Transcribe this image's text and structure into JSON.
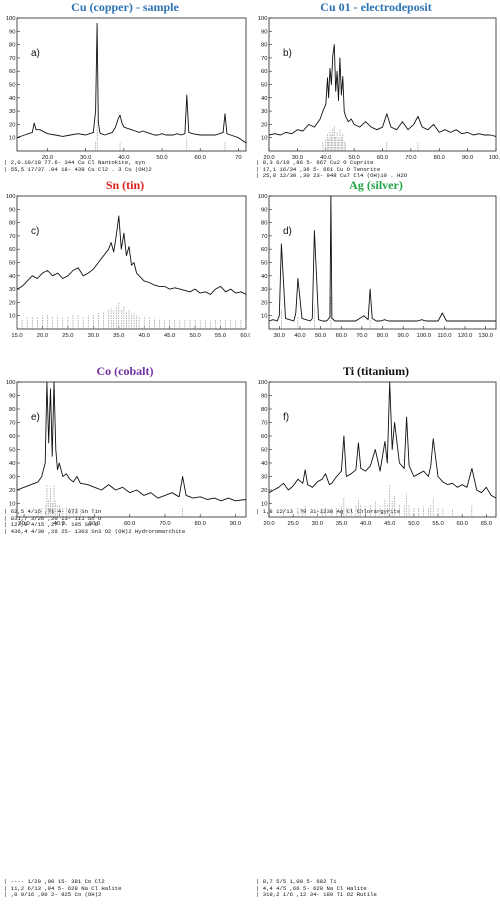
{
  "panels": [
    {
      "id": "cu-sample",
      "title": "Cu (copper) - sample",
      "title_color": "#2e74b5",
      "letter": "a)",
      "legend": [
        "| 2,0.10/10     77.6- 344 Cu Cl Nantokite, syn",
        "| 55,5 17/37 .04 18- 439 Cu Cl2 . 3 Cu (OH)2"
      ]
    },
    {
      "id": "cu-electrodeposit",
      "title": "Cu 01 - electrodeposit",
      "title_color": "#2e74b5",
      "letter": "b)",
      "legend": [
        "| 8,3   6/10   ,86   5- 667 Cu2 O Cuprite",
        "| 17,1 16/34  ,36  5- 661 Cu O Tenorite",
        "| 25,8 12/30  ,30  23- 948 Cu7 Cl4 (OH)10 . H2O"
      ]
    },
    {
      "id": "sn",
      "title": "Sn (tin)",
      "title_color": "#e0201b",
      "letter": "c)",
      "legend": [
        "| 62,5    4/16   ,71   4- 673 Sn Tin",
        "| 831,7  3/26   ,20  13- 111 Sn O",
        "| 127,9  4/15   ,27   7- 195 Sn O",
        "| 436,4  4/30   ,29  25- 1303 Sn3 O2 (OH)2 Hydroromarchite"
      ]
    },
    {
      "id": "ag",
      "title": "Ag (silver)",
      "title_color": "#1fa347",
      "letter": "d)",
      "legend": [
        "| 1,8 12/13 .79 31-1238 Ag Cl Chlorargyrite"
      ]
    },
    {
      "id": "co",
      "title": "Co (cobalt)",
      "title_color": "#7030a0",
      "letter": "e)",
      "legend": [
        "| ---- 1/20   ,00  15- 381 Co Cl2",
        "| 11,2 6/13   ,94  5- 628 Na Cl Halite",
        "| ,0 0/16    ,00  2- 925 Co (OH)2"
      ]
    },
    {
      "id": "ti",
      "title": "Ti (titanium)",
      "title_color": "#111111",
      "letter": "f)",
      "legend": [
        "| 8,7   5/5   1,00   5- 682 Ti",
        "| 4,4   4/5   ,66   5- 628 Na Cl Halite",
        "| 319,2  1/6   ,12  34- 180 Ti O2 Rutile"
      ]
    }
  ],
  "chart_data": [
    {
      "type": "line",
      "title": "Cu (copper) - sample",
      "xlabel": "",
      "ylabel": "",
      "xlim": [
        12,
        72
      ],
      "ylim": [
        0,
        100
      ],
      "xticks": [
        20.0,
        30.0,
        40.0,
        50.0,
        60.0,
        70.0
      ],
      "xtick_labels": [
        "20.0",
        "30.0",
        "40.0",
        "50.0",
        "60.0",
        "70"
      ],
      "yticks": [
        10,
        20,
        30,
        40,
        50,
        60,
        70,
        80,
        90,
        100
      ],
      "x": [
        12,
        14,
        16,
        16.5,
        17,
        18,
        20,
        22,
        24,
        26,
        28,
        30,
        31,
        32,
        32.6,
        33,
        33.3,
        33.7,
        34,
        35,
        36,
        37,
        37.8,
        38.5,
        39,
        39.5,
        40,
        41,
        42,
        43,
        44,
        45,
        46,
        47,
        48,
        49,
        50,
        51,
        52,
        53,
        54,
        55,
        56,
        56.5,
        57,
        58,
        60,
        62,
        64,
        66,
        66.5,
        67,
        68,
        70,
        72
      ],
      "values": [
        10,
        12,
        14,
        21,
        16,
        16,
        13,
        12,
        11,
        12,
        13,
        12,
        13,
        14,
        30,
        96,
        22,
        14,
        13,
        12,
        13,
        14,
        18,
        24,
        27,
        21,
        18,
        17,
        16,
        15,
        14,
        15,
        14,
        13,
        12,
        12,
        13,
        12,
        12,
        12,
        13,
        12,
        13,
        42,
        14,
        13,
        12,
        12,
        12,
        14,
        28,
        13,
        12,
        10,
        6
      ],
      "grid": false
    },
    {
      "type": "line",
      "title": "Cu 01 - electrodeposit",
      "xlabel": "",
      "ylabel": "",
      "xlim": [
        20,
        100
      ],
      "ylim": [
        0,
        100
      ],
      "xticks": [
        20.0,
        30.0,
        40.0,
        50.0,
        60.0,
        70.0,
        80.0,
        90.0,
        100.0
      ],
      "xtick_labels": [
        "20.0",
        "30.0",
        "40.0",
        "50.0",
        "60.0",
        "70.0",
        "80.0",
        "90.0",
        "100.0"
      ],
      "yticks": [
        10,
        20,
        30,
        40,
        50,
        60,
        70,
        80,
        90,
        100
      ],
      "x": [
        20,
        22,
        24,
        26,
        28,
        30,
        32,
        34,
        36,
        38,
        39,
        40,
        40.6,
        41,
        41.5,
        42,
        42.5,
        43,
        43.5,
        44,
        44.5,
        45,
        45.5,
        46,
        46.5,
        47,
        48,
        49,
        50,
        52,
        54,
        56,
        58,
        60,
        61.5,
        63,
        65,
        67,
        69,
        71,
        72.5,
        74,
        76,
        78,
        80,
        82,
        84,
        86,
        88,
        90,
        92,
        94,
        96,
        98,
        100
      ],
      "values": [
        12,
        13,
        12,
        14,
        13,
        16,
        15,
        20,
        18,
        24,
        30,
        35,
        55,
        40,
        62,
        50,
        72,
        80,
        45,
        60,
        38,
        70,
        42,
        56,
        30,
        26,
        22,
        24,
        20,
        18,
        22,
        18,
        16,
        18,
        28,
        18,
        16,
        22,
        16,
        20,
        26,
        18,
        16,
        20,
        14,
        16,
        14,
        16,
        13,
        14,
        12,
        13,
        12,
        12,
        11
      ],
      "grid": false
    },
    {
      "type": "line",
      "title": "Sn (tin)",
      "xlabel": "",
      "ylabel": "",
      "xlim": [
        15,
        60
      ],
      "ylim": [
        0,
        100
      ],
      "xticks": [
        15.0,
        20.0,
        25.0,
        30.0,
        35.0,
        40.0,
        45.0,
        50.0,
        55.0,
        60.0
      ],
      "xtick_labels": [
        "15.0",
        "20.0",
        "25.0",
        "30.0",
        "35.0",
        "40.0",
        "45.0",
        "50.0",
        "55.0",
        "60.0"
      ],
      "yticks": [
        10,
        20,
        30,
        40,
        50,
        60,
        70,
        80,
        90,
        100
      ],
      "x": [
        15,
        16,
        17,
        18,
        19,
        20,
        21,
        22,
        23,
        24,
        25,
        26,
        27,
        28,
        29,
        30,
        31,
        32,
        33,
        33.5,
        34,
        34.5,
        35,
        35.5,
        36,
        36.5,
        37,
        37.5,
        38,
        38.5,
        39,
        40,
        41,
        42,
        43,
        44,
        45,
        46,
        47,
        48,
        49,
        50,
        51,
        52,
        53,
        54,
        55,
        56,
        57,
        58,
        59,
        60
      ],
      "values": [
        30,
        32,
        36,
        40,
        38,
        42,
        44,
        40,
        42,
        38,
        40,
        44,
        46,
        40,
        42,
        45,
        50,
        55,
        60,
        65,
        58,
        70,
        85,
        60,
        72,
        55,
        62,
        48,
        50,
        42,
        40,
        36,
        35,
        33,
        32,
        32,
        30,
        31,
        30,
        29,
        28,
        30,
        27,
        28,
        26,
        30,
        32,
        28,
        30,
        27,
        28,
        26
      ],
      "grid": false
    },
    {
      "type": "line",
      "title": "Ag (silver)",
      "xlabel": "",
      "ylabel": "",
      "xlim": [
        25,
        135
      ],
      "ylim": [
        0,
        100
      ],
      "xticks": [
        30.0,
        40.0,
        50.0,
        60.0,
        70.0,
        80.0,
        90.0,
        100.0,
        110.0,
        120.0,
        130.0
      ],
      "xtick_labels": [
        "30.0",
        "40.0",
        "50.0",
        "60.0",
        "70.0",
        "80.0",
        "90.0",
        "100.0",
        "110.0",
        "120.0",
        "130.0"
      ],
      "yticks": [
        10,
        20,
        30,
        40,
        50,
        60,
        70,
        80,
        90,
        100
      ],
      "x": [
        25,
        27,
        29,
        30,
        31,
        33,
        35,
        37,
        38,
        39,
        41,
        43,
        45,
        46,
        47,
        49,
        51,
        53,
        54.5,
        55,
        55.5,
        57,
        59,
        61,
        63,
        65,
        67,
        69,
        71,
        73,
        74,
        75,
        77,
        79,
        81,
        83,
        85,
        87,
        89,
        91,
        93,
        95,
        97,
        99,
        101,
        103,
        105,
        107,
        109,
        111,
        113,
        115,
        117,
        119,
        121,
        123,
        125,
        127,
        129,
        131,
        133,
        135
      ],
      "values": [
        6,
        7,
        6,
        10,
        64,
        8,
        7,
        6,
        12,
        38,
        8,
        7,
        6,
        8,
        74,
        7,
        6,
        6,
        9,
        100,
        8,
        6,
        6,
        6,
        6,
        6,
        6,
        8,
        10,
        7,
        30,
        8,
        6,
        6,
        7,
        6,
        6,
        6,
        6,
        6,
        6,
        6,
        6,
        7,
        6,
        6,
        6,
        6,
        12,
        6,
        6,
        6,
        6,
        6,
        6,
        6,
        6,
        6,
        6,
        6,
        6,
        6
      ],
      "grid": false
    },
    {
      "type": "line",
      "title": "Co (cobalt)",
      "xlabel": "",
      "ylabel": "",
      "xlim": [
        28,
        93
      ],
      "ylim": [
        0,
        100
      ],
      "xticks": [
        30.0,
        40.0,
        50.0,
        60.0,
        70.0,
        80.0,
        90.0
      ],
      "xtick_labels": [
        "30.0",
        "40.0",
        "50.0",
        "60.0",
        "70.0",
        "80.0",
        "90.0"
      ],
      "yticks": [
        10,
        20,
        30,
        40,
        50,
        60,
        70,
        80,
        90,
        100
      ],
      "x": [
        28,
        30,
        32,
        34,
        35,
        36,
        36.5,
        37,
        37.5,
        38,
        38.5,
        39,
        39.5,
        40,
        41,
        42,
        43,
        44,
        45,
        46,
        48,
        50,
        52,
        54,
        56,
        58,
        60,
        62,
        64,
        66,
        68,
        70,
        72,
        74,
        75,
        76,
        78,
        80,
        82,
        84,
        86,
        88,
        90,
        93
      ],
      "values": [
        20,
        22,
        24,
        26,
        30,
        40,
        100,
        55,
        95,
        45,
        100,
        50,
        35,
        40,
        30,
        32,
        28,
        26,
        30,
        25,
        24,
        22,
        20,
        24,
        20,
        22,
        18,
        20,
        16,
        18,
        14,
        16,
        18,
        15,
        30,
        16,
        14,
        15,
        13,
        14,
        12,
        14,
        12,
        13
      ],
      "grid": false
    },
    {
      "type": "line",
      "title": "Ti (titanium)",
      "xlabel": "",
      "ylabel": "",
      "xlim": [
        20,
        67
      ],
      "ylim": [
        0,
        100
      ],
      "xticks": [
        20.0,
        25.0,
        30.0,
        35.0,
        40.0,
        45.0,
        50.0,
        55.0,
        60.0,
        65.0
      ],
      "xtick_labels": [
        "20.0",
        "25.0",
        "30.0",
        "35.0",
        "40.0",
        "45.0",
        "50.0",
        "55.0",
        "60.0",
        "65.0"
      ],
      "yticks": [
        10,
        20,
        30,
        40,
        50,
        60,
        70,
        80,
        90,
        100
      ],
      "x": [
        20,
        21,
        22,
        23,
        24,
        25,
        26,
        27,
        27.5,
        28,
        29,
        30,
        31,
        31.7,
        32.5,
        33,
        34,
        35,
        35.5,
        36,
        37,
        38,
        38.5,
        39,
        40,
        41,
        42,
        43,
        44,
        44.5,
        45,
        45.5,
        46,
        47,
        48,
        48.5,
        49,
        50,
        51,
        52,
        53,
        53.5,
        54,
        55,
        56,
        57,
        58,
        59,
        60,
        61,
        62,
        63,
        64,
        65,
        66,
        67
      ],
      "values": [
        18,
        20,
        22,
        25,
        20,
        23,
        28,
        25,
        35,
        24,
        22,
        26,
        28,
        32,
        24,
        25,
        30,
        34,
        60,
        30,
        32,
        35,
        55,
        36,
        34,
        38,
        50,
        34,
        56,
        40,
        100,
        50,
        70,
        40,
        36,
        74,
        38,
        30,
        32,
        34,
        30,
        38,
        58,
        30,
        26,
        24,
        25,
        22,
        24,
        22,
        36,
        20,
        18,
        22,
        16,
        14
      ],
      "grid": false
    }
  ]
}
